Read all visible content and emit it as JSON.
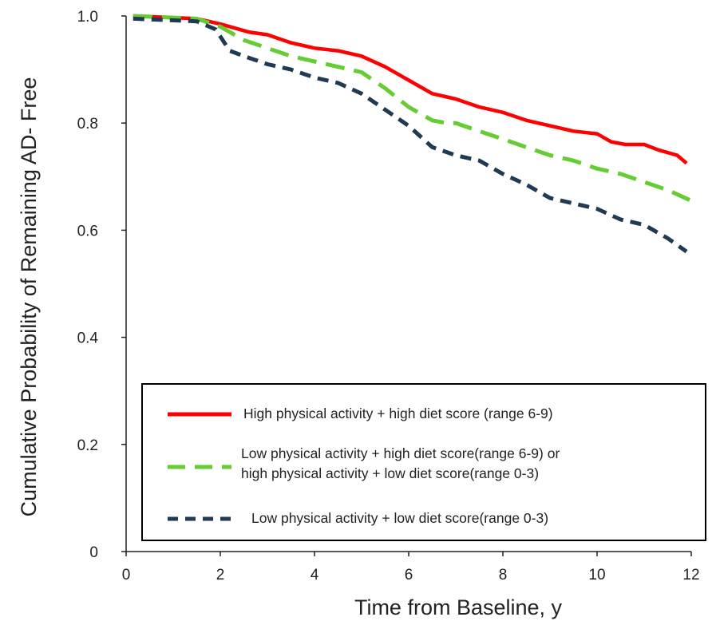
{
  "chart_data": {
    "type": "line",
    "title": "",
    "xlabel": "Time from Baseline, y",
    "ylabel": "Cumulative Probability of Remaining AD- Free",
    "xlim": [
      0,
      12
    ],
    "ylim": [
      0,
      1.0
    ],
    "x_ticks": [
      0,
      2,
      4,
      6,
      8,
      10,
      12
    ],
    "y_ticks": [
      0,
      0.2,
      0.4,
      0.6,
      0.8,
      1.0
    ],
    "x_tick_labels": [
      "0",
      "2",
      "4",
      "6",
      "8",
      "10",
      "12"
    ],
    "y_tick_labels": [
      "0",
      "0.2",
      "0.4",
      "0.6",
      "0.8",
      "1.0"
    ],
    "grid": false,
    "legend_position": "bottom-center",
    "series": [
      {
        "name": "High physical activity + high diet score (range 6-9)",
        "color": "#ff0000",
        "style": "solid",
        "points": [
          [
            0.15,
            1.0
          ],
          [
            1.5,
            0.995
          ],
          [
            2.0,
            0.985
          ],
          [
            2.6,
            0.97
          ],
          [
            3.0,
            0.965
          ],
          [
            3.5,
            0.95
          ],
          [
            4.0,
            0.94
          ],
          [
            4.5,
            0.935
          ],
          [
            5.0,
            0.925
          ],
          [
            5.5,
            0.905
          ],
          [
            6.0,
            0.88
          ],
          [
            6.5,
            0.855
          ],
          [
            7.0,
            0.845
          ],
          [
            7.5,
            0.83
          ],
          [
            8.0,
            0.82
          ],
          [
            8.5,
            0.805
          ],
          [
            9.0,
            0.795
          ],
          [
            9.5,
            0.785
          ],
          [
            10.0,
            0.78
          ],
          [
            10.3,
            0.765
          ],
          [
            10.6,
            0.76
          ],
          [
            11.0,
            0.76
          ],
          [
            11.3,
            0.75
          ],
          [
            11.7,
            0.74
          ],
          [
            11.9,
            0.725
          ]
        ]
      },
      {
        "name": "Low physical activity + high diet score(range 6-9) or high physical activity + low diet score(range 0-3)",
        "color": "#66cc33",
        "style": "dashed",
        "points": [
          [
            0.15,
            1.0
          ],
          [
            1.5,
            0.995
          ],
          [
            2.0,
            0.98
          ],
          [
            2.5,
            0.955
          ],
          [
            3.0,
            0.94
          ],
          [
            3.5,
            0.925
          ],
          [
            4.0,
            0.915
          ],
          [
            4.5,
            0.905
          ],
          [
            5.0,
            0.895
          ],
          [
            5.5,
            0.865
          ],
          [
            6.0,
            0.83
          ],
          [
            6.5,
            0.805
          ],
          [
            6.8,
            0.8
          ],
          [
            7.0,
            0.8
          ],
          [
            7.5,
            0.785
          ],
          [
            8.0,
            0.77
          ],
          [
            8.5,
            0.755
          ],
          [
            9.0,
            0.74
          ],
          [
            9.5,
            0.73
          ],
          [
            10.0,
            0.715
          ],
          [
            10.5,
            0.705
          ],
          [
            11.0,
            0.69
          ],
          [
            11.5,
            0.675
          ],
          [
            12.0,
            0.655
          ]
        ]
      },
      {
        "name": "Low physical activity + low diet score(range 0-3)",
        "color": "#1f3a52",
        "style": "dashed",
        "points": [
          [
            0.15,
            0.995
          ],
          [
            1.5,
            0.99
          ],
          [
            1.9,
            0.975
          ],
          [
            2.2,
            0.935
          ],
          [
            2.5,
            0.925
          ],
          [
            3.0,
            0.91
          ],
          [
            3.5,
            0.9
          ],
          [
            4.0,
            0.885
          ],
          [
            4.5,
            0.875
          ],
          [
            5.0,
            0.855
          ],
          [
            5.5,
            0.825
          ],
          [
            6.0,
            0.795
          ],
          [
            6.5,
            0.755
          ],
          [
            7.0,
            0.74
          ],
          [
            7.5,
            0.73
          ],
          [
            8.0,
            0.705
          ],
          [
            8.5,
            0.685
          ],
          [
            9.0,
            0.66
          ],
          [
            9.5,
            0.65
          ],
          [
            10.0,
            0.64
          ],
          [
            10.5,
            0.62
          ],
          [
            11.0,
            0.61
          ],
          [
            11.5,
            0.585
          ],
          [
            11.9,
            0.56
          ]
        ]
      }
    ]
  }
}
